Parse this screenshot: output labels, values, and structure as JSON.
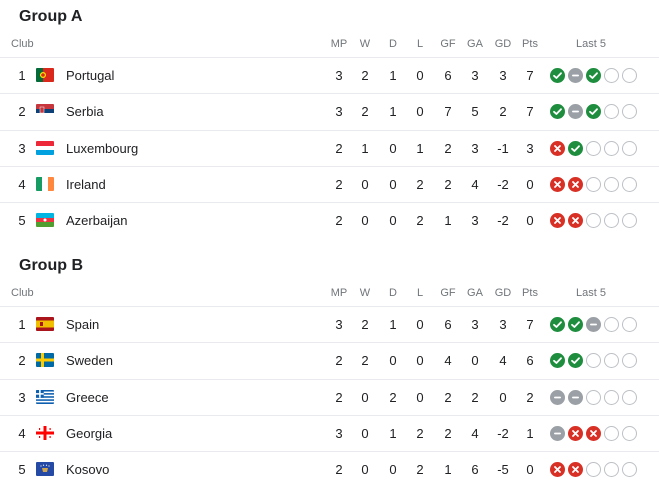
{
  "columns": {
    "club": "Club",
    "mp": "MP",
    "w": "W",
    "d": "D",
    "l": "L",
    "gf": "GF",
    "ga": "GA",
    "gd": "GD",
    "pts": "Pts",
    "last5": "Last 5"
  },
  "groups": [
    {
      "title": "Group A",
      "rows": [
        {
          "rank": "1",
          "club": "Portugal",
          "flag": "portugal-flag-icon",
          "mp": "3",
          "w": "2",
          "d": "1",
          "l": "0",
          "gf": "6",
          "ga": "3",
          "gd": "3",
          "pts": "7",
          "last5": [
            "W",
            "D",
            "W",
            "",
            ""
          ]
        },
        {
          "rank": "2",
          "club": "Serbia",
          "flag": "serbia-flag-icon",
          "mp": "3",
          "w": "2",
          "d": "1",
          "l": "0",
          "gf": "7",
          "ga": "5",
          "gd": "2",
          "pts": "7",
          "last5": [
            "W",
            "D",
            "W",
            "",
            ""
          ]
        },
        {
          "rank": "3",
          "club": "Luxembourg",
          "flag": "luxembourg-flag-icon",
          "mp": "2",
          "w": "1",
          "d": "0",
          "l": "1",
          "gf": "2",
          "ga": "3",
          "gd": "-1",
          "pts": "3",
          "last5": [
            "L",
            "W",
            "",
            "",
            ""
          ]
        },
        {
          "rank": "4",
          "club": "Ireland",
          "flag": "ireland-flag-icon",
          "mp": "2",
          "w": "0",
          "d": "0",
          "l": "2",
          "gf": "2",
          "ga": "4",
          "gd": "-2",
          "pts": "0",
          "last5": [
            "L",
            "L",
            "",
            "",
            ""
          ]
        },
        {
          "rank": "5",
          "club": "Azerbaijan",
          "flag": "azerbaijan-flag-icon",
          "mp": "2",
          "w": "0",
          "d": "0",
          "l": "2",
          "gf": "1",
          "ga": "3",
          "gd": "-2",
          "pts": "0",
          "last5": [
            "L",
            "L",
            "",
            "",
            ""
          ]
        }
      ]
    },
    {
      "title": "Group B",
      "rows": [
        {
          "rank": "1",
          "club": "Spain",
          "flag": "spain-flag-icon",
          "mp": "3",
          "w": "2",
          "d": "1",
          "l": "0",
          "gf": "6",
          "ga": "3",
          "gd": "3",
          "pts": "7",
          "last5": [
            "W",
            "W",
            "D",
            "",
            ""
          ]
        },
        {
          "rank": "2",
          "club": "Sweden",
          "flag": "sweden-flag-icon",
          "mp": "2",
          "w": "2",
          "d": "0",
          "l": "0",
          "gf": "4",
          "ga": "0",
          "gd": "4",
          "pts": "6",
          "last5": [
            "W",
            "W",
            "",
            "",
            ""
          ]
        },
        {
          "rank": "3",
          "club": "Greece",
          "flag": "greece-flag-icon",
          "mp": "2",
          "w": "0",
          "d": "2",
          "l": "0",
          "gf": "2",
          "ga": "2",
          "gd": "0",
          "pts": "2",
          "last5": [
            "D",
            "D",
            "",
            "",
            ""
          ]
        },
        {
          "rank": "4",
          "club": "Georgia",
          "flag": "georgia-flag-icon",
          "mp": "3",
          "w": "0",
          "d": "1",
          "l": "2",
          "gf": "2",
          "ga": "4",
          "gd": "-2",
          "pts": "1",
          "last5": [
            "D",
            "L",
            "L",
            "",
            ""
          ]
        },
        {
          "rank": "5",
          "club": "Kosovo",
          "flag": "kosovo-flag-icon",
          "mp": "2",
          "w": "0",
          "d": "0",
          "l": "2",
          "gf": "1",
          "ga": "6",
          "gd": "-5",
          "pts": "0",
          "last5": [
            "L",
            "L",
            "",
            "",
            ""
          ]
        }
      ]
    }
  ],
  "colors": {
    "win": "#1e8e3e",
    "draw": "#9aa0a6",
    "loss": "#d93025",
    "empty": "#bdc1c6"
  }
}
